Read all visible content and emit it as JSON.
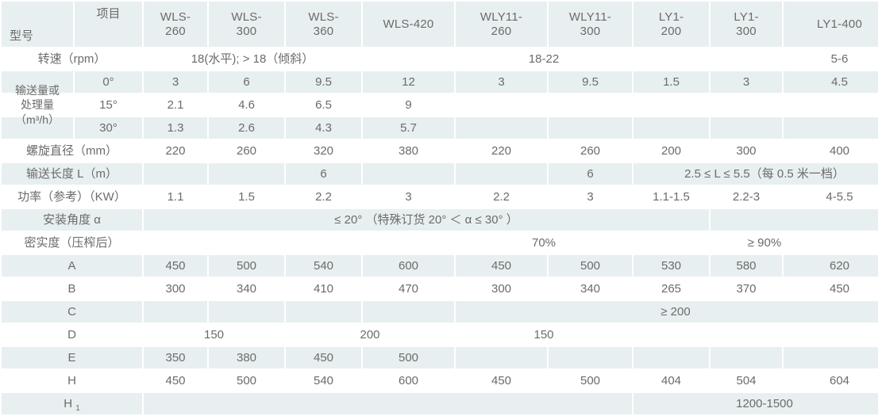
{
  "colors": {
    "cell_light": "#e8eff0",
    "cell_white": "#ffffff",
    "gap_white": "#ffffff",
    "text_gray": "#6b6b6b"
  },
  "table": {
    "rows": [
      {
        "name": "header",
        "shade": "light",
        "row_cls": "header-row",
        "cells": [
          {
            "t": "型号",
            "cls": "corner-model"
          },
          {
            "t": "项目",
            "cls": "corner-item"
          },
          {
            "t": "WLS-\n260",
            "cls": "model"
          },
          {
            "t": "WLS-\n300",
            "cls": "model"
          },
          {
            "t": "WLS-\n360",
            "cls": "model"
          },
          {
            "t": "WLS-420",
            "cls": "model"
          },
          {
            "t": "WLY11-\n260",
            "cls": "model"
          },
          {
            "t": "WLY11-\n300",
            "cls": "model"
          },
          {
            "t": "LY1-\n200",
            "cls": "model"
          },
          {
            "t": "LY1-\n300",
            "cls": "model"
          },
          {
            "t": "LY1-400",
            "cls": "model"
          }
        ]
      },
      {
        "name": "rotation-speed",
        "shade": "white",
        "cells": [
          {
            "t": "转速（rpm）",
            "c": 2,
            "cls": "lbl"
          },
          {
            "t": "18(水平);  > 18（倾斜）",
            "c": 3
          },
          {
            "t": ""
          },
          {
            "t": "18-22",
            "c": 2
          },
          {
            "t": ""
          },
          {
            "t": ""
          },
          {
            "t": "5-6"
          }
        ]
      },
      {
        "name": "capacity-0deg",
        "shade": "light",
        "cells": [
          {
            "t": "输送量或\n处理量\n（m³/h）",
            "r": 3,
            "cls": "lbl group"
          },
          {
            "t": "0°",
            "cls": "lbl"
          },
          {
            "t": "3"
          },
          {
            "t": "6"
          },
          {
            "t": "9.5"
          },
          {
            "t": "12"
          },
          {
            "t": "3"
          },
          {
            "t": "9.5"
          },
          {
            "t": "1.5"
          },
          {
            "t": "3"
          },
          {
            "t": "4.5"
          }
        ]
      },
      {
        "name": "capacity-15deg",
        "shade": "white",
        "cells": [
          {
            "t": "15°",
            "cls": "lbl"
          },
          {
            "t": "2.1"
          },
          {
            "t": "4.6"
          },
          {
            "t": "6.5"
          },
          {
            "t": "9"
          },
          {
            "t": ""
          },
          {
            "t": ""
          },
          {
            "t": ""
          },
          {
            "t": ""
          },
          {
            "t": ""
          }
        ]
      },
      {
        "name": "capacity-30deg",
        "shade": "light",
        "cells": [
          {
            "t": "30°",
            "cls": "lbl"
          },
          {
            "t": "1.3"
          },
          {
            "t": "2.6"
          },
          {
            "t": "4.3"
          },
          {
            "t": "5.7"
          },
          {
            "t": ""
          },
          {
            "t": ""
          },
          {
            "t": ""
          },
          {
            "t": ""
          },
          {
            "t": ""
          }
        ]
      },
      {
        "name": "screw-diameter",
        "shade": "white",
        "cells": [
          {
            "t": "螺旋直径（mm）",
            "c": 2,
            "cls": "lbl"
          },
          {
            "t": "220"
          },
          {
            "t": "260"
          },
          {
            "t": "320"
          },
          {
            "t": "380"
          },
          {
            "t": "220"
          },
          {
            "t": "260"
          },
          {
            "t": "200"
          },
          {
            "t": "300"
          },
          {
            "t": "400"
          }
        ]
      },
      {
        "name": "conveying-length",
        "shade": "light",
        "cells": [
          {
            "t": "输送长度 L（m）",
            "c": 2,
            "cls": "lbl"
          },
          {
            "t": ""
          },
          {
            "t": ""
          },
          {
            "t": "6"
          },
          {
            "t": ""
          },
          {
            "t": ""
          },
          {
            "t": "6"
          },
          {
            "t": "2.5 ≤ L ≤ 5.5（每 0.5 米一档）",
            "c": 3
          }
        ]
      },
      {
        "name": "power",
        "shade": "white",
        "cells": [
          {
            "t": "功率（参考）（KW）",
            "c": 2,
            "cls": "lbl"
          },
          {
            "t": "1.1"
          },
          {
            "t": "1.5"
          },
          {
            "t": "2.2"
          },
          {
            "t": "3"
          },
          {
            "t": "2.2"
          },
          {
            "t": "3"
          },
          {
            "t": "1.1-1.5"
          },
          {
            "t": "2.2-3"
          },
          {
            "t": "4-5.5"
          }
        ]
      },
      {
        "name": "install-angle",
        "shade": "light",
        "cells": [
          {
            "t": "安装角度 α",
            "c": 2,
            "cls": "lbl"
          },
          {
            "t": "≤ 20° （特殊订货 20° ＜ α ≤ 30° ）",
            "c": 7
          },
          {
            "t": "",
            "c": 2
          }
        ]
      },
      {
        "name": "compactness",
        "shade": "white",
        "cells": [
          {
            "t": "密实度（压榨后）",
            "c": 2,
            "cls": "lbl"
          },
          {
            "t": "",
            "c": 4
          },
          {
            "t": "70%",
            "c": 2
          },
          {
            "t": "≥ 90%",
            "c": 3
          }
        ]
      },
      {
        "name": "dim-a",
        "shade": "light",
        "cells": [
          {
            "t": "A",
            "c": 2,
            "cls": "lbl"
          },
          {
            "t": "450"
          },
          {
            "t": "500"
          },
          {
            "t": "540"
          },
          {
            "t": "600"
          },
          {
            "t": "450"
          },
          {
            "t": "500"
          },
          {
            "t": "530"
          },
          {
            "t": "580"
          },
          {
            "t": "620"
          }
        ]
      },
      {
        "name": "dim-b",
        "shade": "white",
        "cells": [
          {
            "t": "B",
            "c": 2,
            "cls": "lbl"
          },
          {
            "t": "300"
          },
          {
            "t": "340"
          },
          {
            "t": "410"
          },
          {
            "t": "470"
          },
          {
            "t": "300"
          },
          {
            "t": "340"
          },
          {
            "t": "265"
          },
          {
            "t": "370"
          },
          {
            "t": "450"
          }
        ]
      },
      {
        "name": "dim-c",
        "shade": "light",
        "cells": [
          {
            "t": "C",
            "c": 2,
            "cls": "lbl"
          },
          {
            "t": ""
          },
          {
            "t": ""
          },
          {
            "t": ""
          },
          {
            "t": ""
          },
          {
            "t": "≥ 200",
            "c": 5
          }
        ]
      },
      {
        "name": "dim-d",
        "shade": "white",
        "cells": [
          {
            "t": "D",
            "c": 2,
            "cls": "lbl"
          },
          {
            "t": "150",
            "c": 2
          },
          {
            "t": "200",
            "c": 2
          },
          {
            "t": "150",
            "c": 2
          },
          {
            "t": "",
            "c": 3
          }
        ]
      },
      {
        "name": "dim-e",
        "shade": "light",
        "cells": [
          {
            "t": "E",
            "c": 2,
            "cls": "lbl"
          },
          {
            "t": "350"
          },
          {
            "t": "380"
          },
          {
            "t": "450"
          },
          {
            "t": "500"
          },
          {
            "t": ""
          },
          {
            "t": ""
          },
          {
            "t": ""
          },
          {
            "t": ""
          },
          {
            "t": ""
          }
        ]
      },
      {
        "name": "dim-h",
        "shade": "white",
        "cells": [
          {
            "t": "H",
            "c": 2,
            "cls": "lbl"
          },
          {
            "t": "450"
          },
          {
            "t": "500"
          },
          {
            "t": "540"
          },
          {
            "t": "600"
          },
          {
            "t": "450"
          },
          {
            "t": "500"
          },
          {
            "t": "404"
          },
          {
            "t": "504"
          },
          {
            "t": "604"
          }
        ]
      },
      {
        "name": "dim-h1",
        "shade": "light",
        "cells": [
          {
            "t": "H ",
            "sub": "1",
            "c": 2,
            "cls": "lbl"
          },
          {
            "t": "",
            "c": 6
          },
          {
            "t": "1200-1500",
            "c": 3
          }
        ]
      }
    ]
  }
}
